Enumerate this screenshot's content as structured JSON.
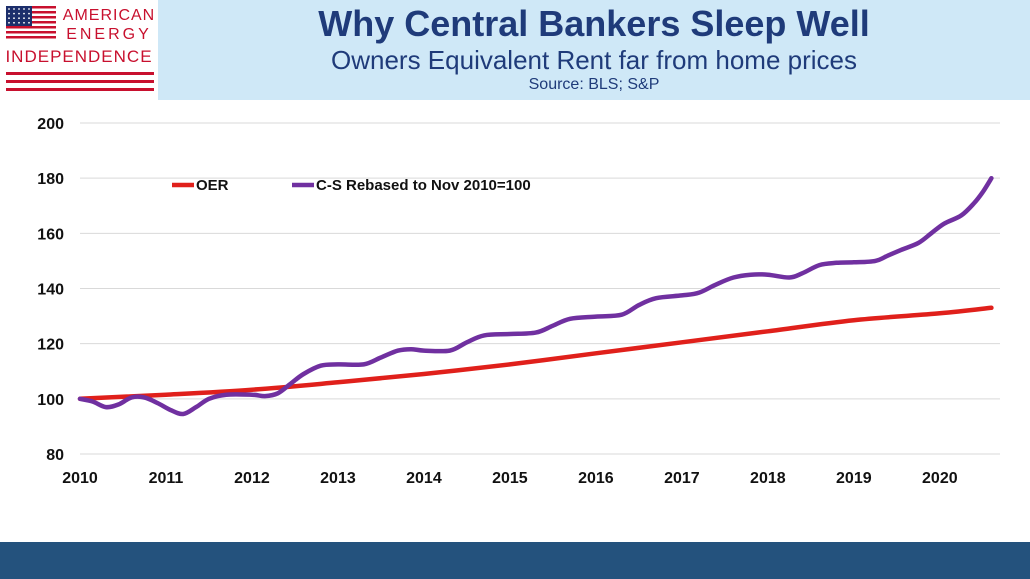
{
  "header": {
    "logo": {
      "line1": "AMERICAN",
      "line2": "ENERGY",
      "line3": "INDEPENDENCE"
    },
    "title": "Why Central Bankers Sleep Well",
    "subtitle": "Owners Equivalent Rent far from home prices",
    "source": "Source: BLS; S&P"
  },
  "colors": {
    "header_bg": "#cfe8f7",
    "title": "#1f3b7a",
    "logo_red": "#c8102e",
    "flag_blue": "#1c2e6b",
    "footer": "#24527d",
    "oer": "#e0201b",
    "cs": "#7030a0",
    "grid": "#d9d9d9"
  },
  "chart_data": {
    "type": "line",
    "title": "Why Central Bankers Sleep Well",
    "xlabel": "",
    "ylabel": "",
    "xlim": [
      2010,
      2020.7
    ],
    "ylim": [
      80,
      200
    ],
    "x_ticks": [
      2010,
      2011,
      2012,
      2013,
      2014,
      2015,
      2016,
      2017,
      2018,
      2019,
      2020
    ],
    "y_ticks": [
      80,
      100,
      120,
      140,
      160,
      180,
      200
    ],
    "grid": "horizontal",
    "legend": "top-left",
    "series": [
      {
        "name": "OER",
        "color": "#e0201b",
        "points": [
          [
            2010.0,
            100.0
          ],
          [
            2011.0,
            101.5
          ],
          [
            2012.0,
            103.3
          ],
          [
            2013.0,
            106.0
          ],
          [
            2014.0,
            109.0
          ],
          [
            2015.0,
            112.5
          ],
          [
            2016.0,
            116.5
          ],
          [
            2017.0,
            120.5
          ],
          [
            2018.0,
            124.5
          ],
          [
            2019.0,
            128.5
          ],
          [
            2020.0,
            131.0
          ],
          [
            2020.6,
            133.0
          ]
        ]
      },
      {
        "name": "C-S Rebased to Nov 2010=100",
        "color": "#7030a0",
        "points": [
          [
            2010.0,
            100.0
          ],
          [
            2010.15,
            99.0
          ],
          [
            2010.3,
            97.0
          ],
          [
            2010.45,
            98.0
          ],
          [
            2010.6,
            100.5
          ],
          [
            2010.75,
            100.5
          ],
          [
            2010.9,
            98.5
          ],
          [
            2011.05,
            96.0
          ],
          [
            2011.2,
            94.5
          ],
          [
            2011.35,
            97.0
          ],
          [
            2011.5,
            100.0
          ],
          [
            2011.7,
            101.5
          ],
          [
            2012.0,
            101.5
          ],
          [
            2012.15,
            101.0
          ],
          [
            2012.3,
            102.0
          ],
          [
            2012.45,
            105.5
          ],
          [
            2012.6,
            109.0
          ],
          [
            2012.8,
            112.0
          ],
          [
            2013.0,
            112.5
          ],
          [
            2013.3,
            112.5
          ],
          [
            2013.5,
            115.0
          ],
          [
            2013.7,
            117.5
          ],
          [
            2013.85,
            118.0
          ],
          [
            2014.0,
            117.5
          ],
          [
            2014.3,
            117.5
          ],
          [
            2014.5,
            120.5
          ],
          [
            2014.7,
            123.0
          ],
          [
            2015.0,
            123.5
          ],
          [
            2015.3,
            124.0
          ],
          [
            2015.5,
            126.5
          ],
          [
            2015.7,
            129.0
          ],
          [
            2016.0,
            129.8
          ],
          [
            2016.3,
            130.5
          ],
          [
            2016.5,
            134.0
          ],
          [
            2016.7,
            136.5
          ],
          [
            2017.0,
            137.5
          ],
          [
            2017.2,
            138.5
          ],
          [
            2017.4,
            141.5
          ],
          [
            2017.6,
            144.0
          ],
          [
            2017.8,
            145.0
          ],
          [
            2018.0,
            145.0
          ],
          [
            2018.25,
            144.0
          ],
          [
            2018.4,
            145.5
          ],
          [
            2018.6,
            148.5
          ],
          [
            2018.8,
            149.3
          ],
          [
            2019.0,
            149.5
          ],
          [
            2019.25,
            150.0
          ],
          [
            2019.4,
            152.0
          ],
          [
            2019.55,
            154.0
          ],
          [
            2019.75,
            156.5
          ],
          [
            2019.9,
            160.0
          ],
          [
            2020.05,
            163.5
          ],
          [
            2020.25,
            166.5
          ],
          [
            2020.4,
            171.0
          ],
          [
            2020.5,
            175.0
          ],
          [
            2020.6,
            180.0
          ]
        ]
      }
    ]
  }
}
